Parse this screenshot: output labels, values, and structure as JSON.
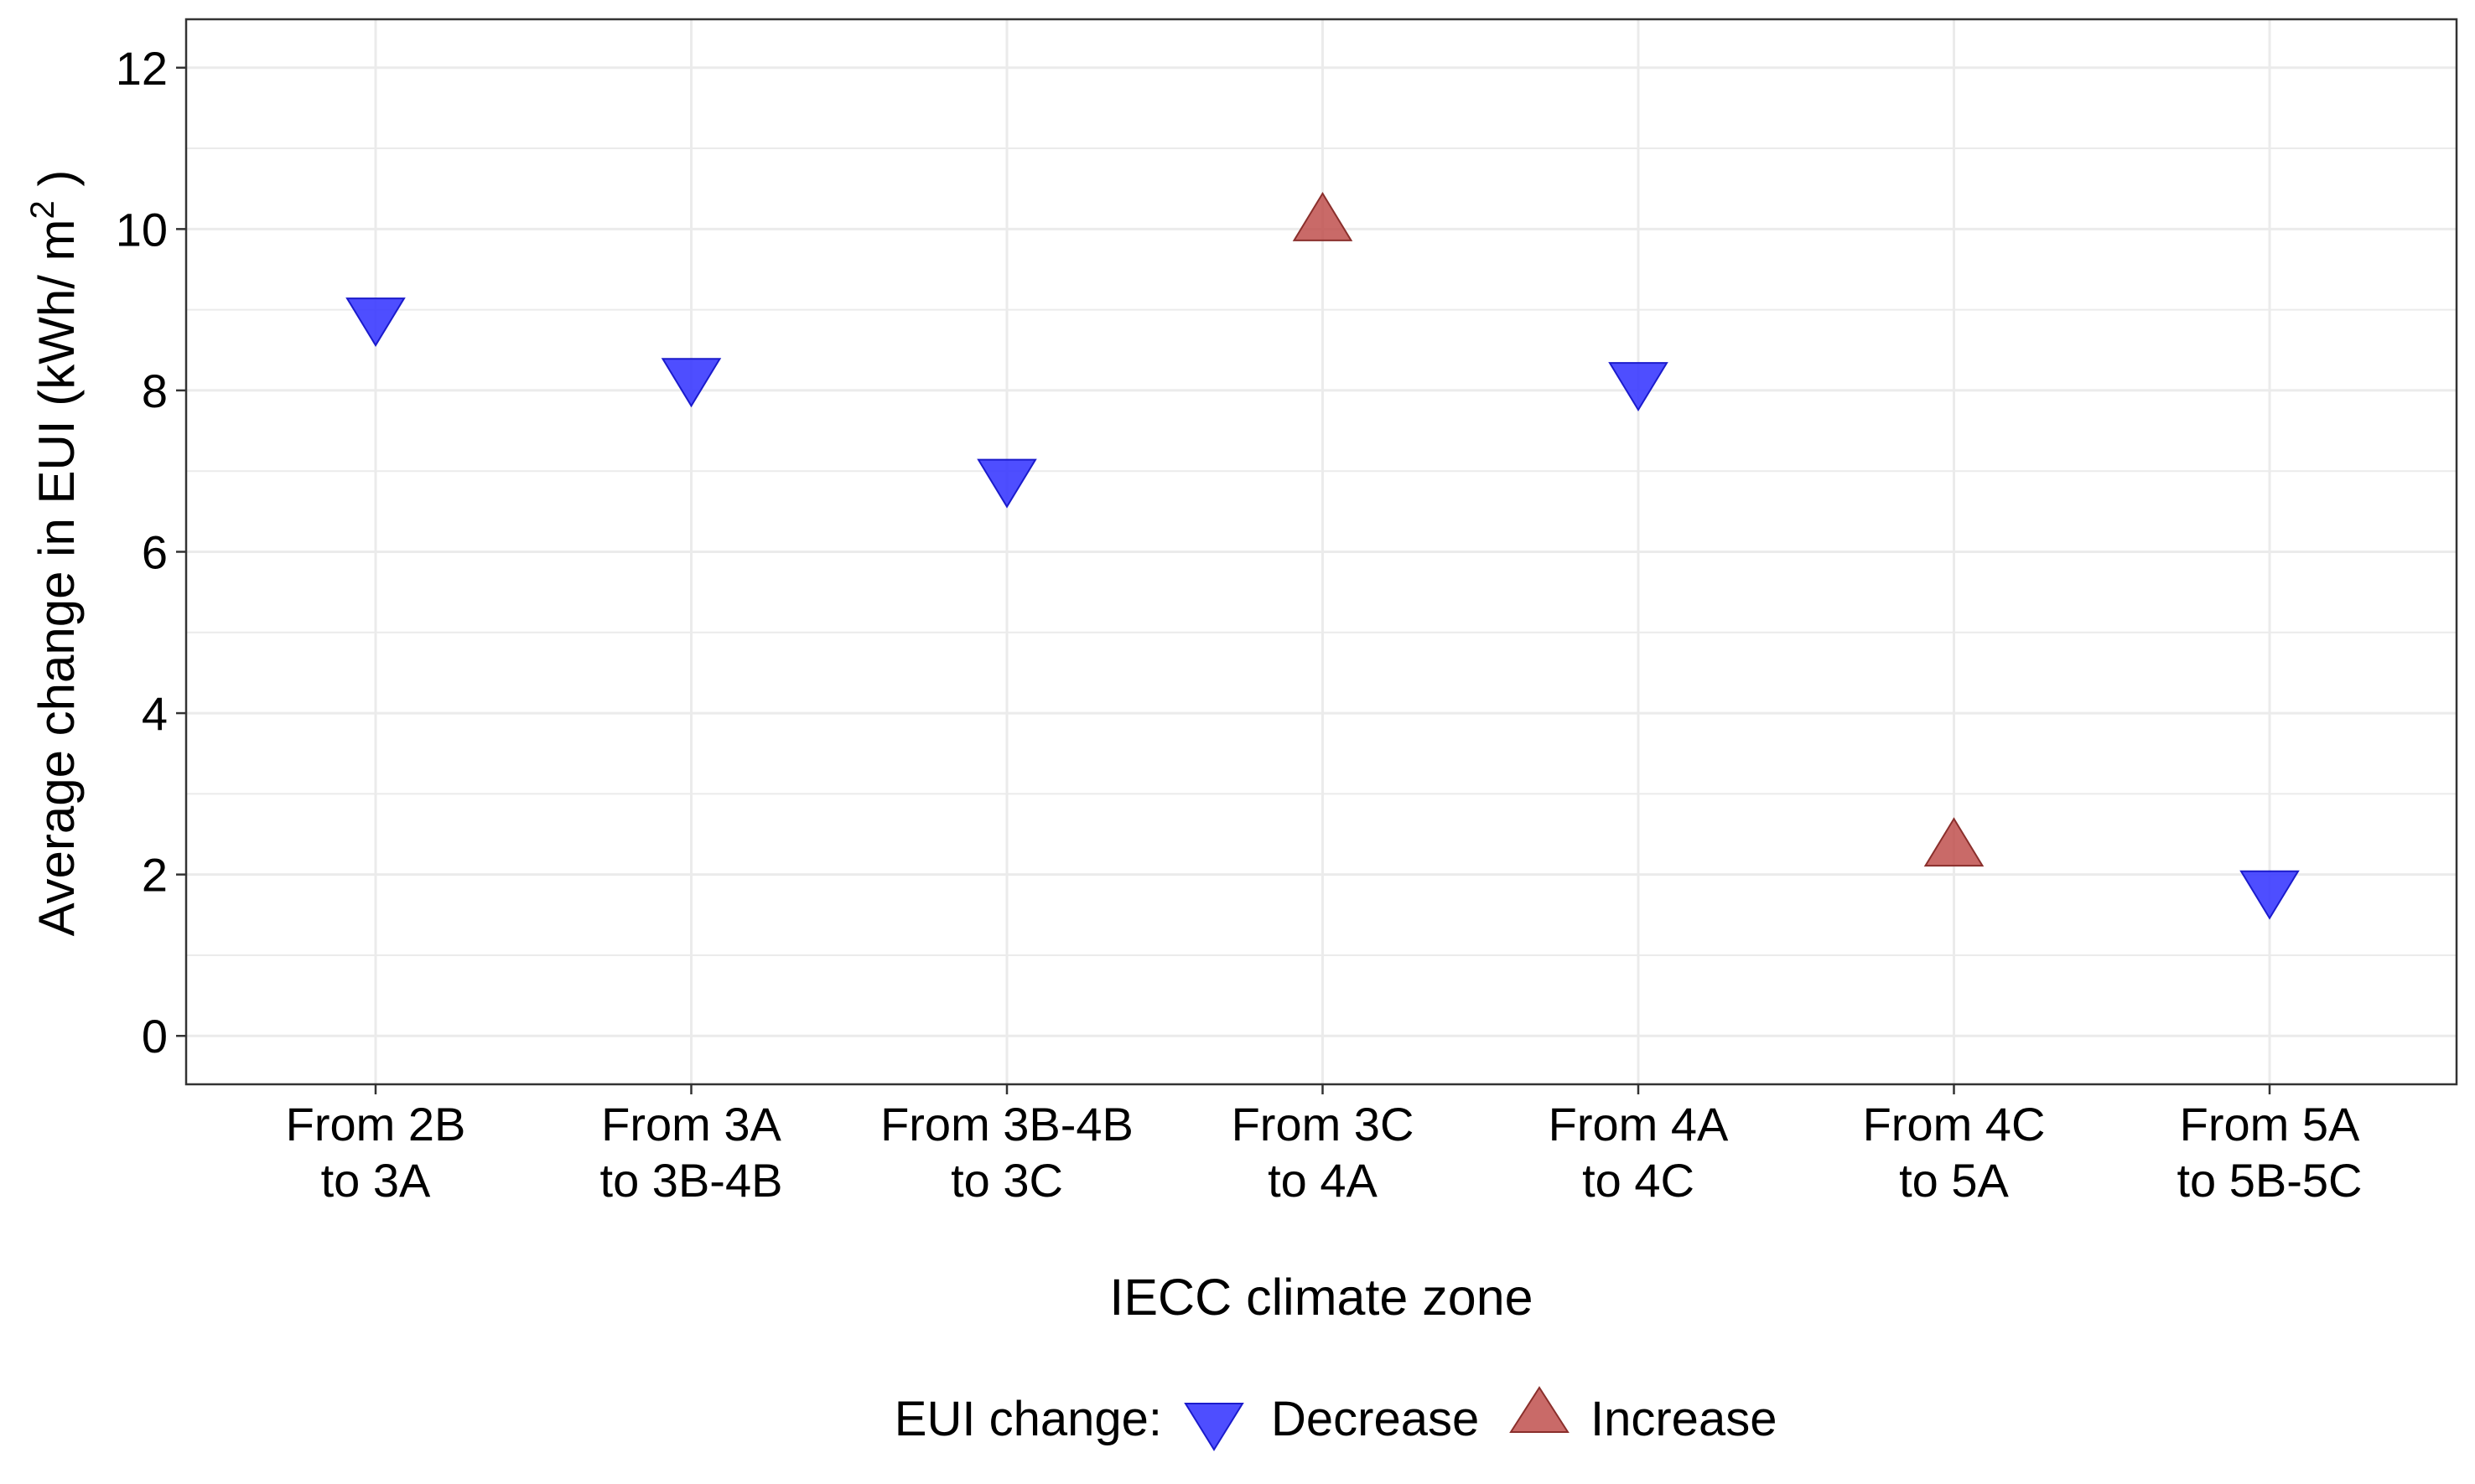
{
  "chart_data": {
    "type": "scatter",
    "title": "",
    "xlabel": "IECC climate zone",
    "ylabel": {
      "prefix": "Average change in EUI (kWh/ m",
      "superscript": "2",
      "suffix": " )"
    },
    "ylim": [
      -0.6,
      12.6
    ],
    "yticks": [
      "0",
      "2",
      "4",
      "6",
      "8",
      "10",
      "12"
    ],
    "ytick_values": [
      0,
      2,
      4,
      6,
      8,
      10,
      12
    ],
    "grid": true,
    "categories": [
      [
        "From  2B",
        "to 3A"
      ],
      [
        "From 3A",
        "to 3B-4B"
      ],
      [
        "From 3B-4B",
        "to 3C"
      ],
      [
        "From 3C",
        "to 4A"
      ],
      [
        "From 4A",
        "to 4C"
      ],
      [
        "From 4C",
        "to 5A"
      ],
      [
        "From 5A",
        "to 5B-5C"
      ]
    ],
    "points": [
      {
        "value": 8.85,
        "change": "Decrease"
      },
      {
        "value": 8.1,
        "change": "Decrease"
      },
      {
        "value": 6.85,
        "change": "Decrease"
      },
      {
        "value": 10.15,
        "change": "Increase"
      },
      {
        "value": 8.05,
        "change": "Decrease"
      },
      {
        "value": 2.4,
        "change": "Increase"
      },
      {
        "value": 1.75,
        "change": "Decrease"
      }
    ],
    "legend": {
      "title": "EUI change:",
      "placement": "bottom",
      "items": [
        {
          "label": "Decrease",
          "shape": "down-triangle",
          "color": "#3b3bff"
        },
        {
          "label": "Increase",
          "shape": "up-triangle",
          "color": "#c0504d"
        }
      ]
    },
    "colors": {
      "Decrease": "#3b3bff",
      "Increase": "#c0504d",
      "grid": "#ebebeb",
      "panel_border": "#333333"
    }
  }
}
